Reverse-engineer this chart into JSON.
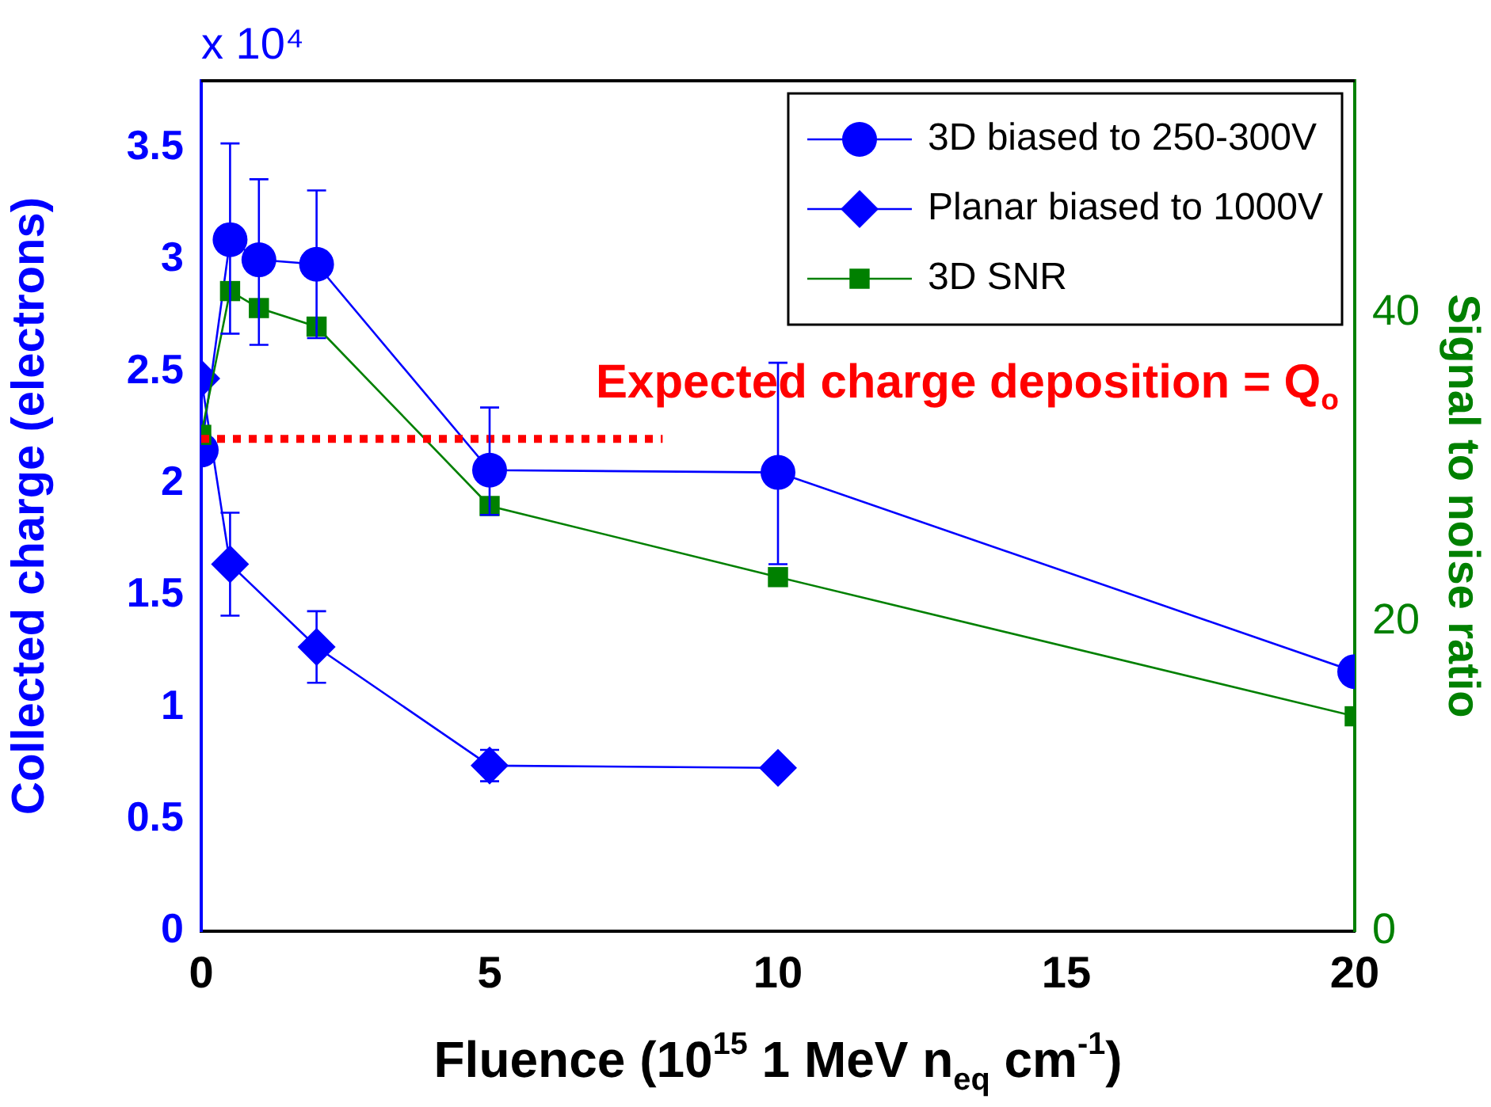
{
  "chart_data": {
    "type": "line",
    "xlabel": "Fluence (10$^{15}$ 1 MeV n$_{eq}$ cm$^{-1}$)",
    "ylabel": "Collected charge (electrons)",
    "y2label": "Signal to noise ratio",
    "xlim": [
      0,
      20
    ],
    "xticks": [
      0,
      5,
      10,
      15,
      20
    ],
    "ylim": [
      0,
      3.8
    ],
    "yticks": [
      0,
      0.5,
      1,
      1.5,
      2,
      2.5,
      3,
      3.5
    ],
    "y2lim": [
      0,
      55
    ],
    "y2ticks": [
      0,
      20,
      40
    ],
    "legend": "top right",
    "grid": false,
    "annotations": [
      "x 10⁴",
      "Expected charge deposition = Q$_{o}$"
    ],
    "series": [
      {
        "name": "3D biased to 250-300V",
        "color": "#0000ff",
        "marker": "circle",
        "x": [
          0,
          0.5,
          1,
          2,
          5,
          10,
          20
        ],
        "values": [
          2.15,
          3.09,
          3.0,
          2.98,
          2.06,
          2.05,
          1.16
        ],
        "errors": [
          null,
          [
            2.67,
            3.52
          ],
          [
            2.62,
            3.36
          ],
          [
            2.65,
            3.31
          ],
          [
            1.86,
            2.34
          ],
          [
            1.64,
            2.54
          ],
          null
        ]
      },
      {
        "name": "Planar biased to 1000V",
        "color": "#0000ff",
        "marker": "diamond",
        "x": [
          0,
          0.5,
          2,
          5,
          10
        ],
        "values": [
          2.47,
          1.64,
          1.27,
          0.74,
          0.73
        ],
        "errors": [
          null,
          [
            1.41,
            1.87
          ],
          [
            1.11,
            1.43
          ],
          [
            0.67,
            0.81
          ],
          null
        ]
      },
      {
        "name": "3D SNR",
        "axis": "y2",
        "color": "#008000",
        "marker": "square",
        "x": [
          0,
          0.5,
          1,
          2,
          5,
          10,
          20
        ],
        "values": [
          32.1,
          41.4,
          40.3,
          39.1,
          27.5,
          22.9,
          13.9
        ]
      },
      {
        "color": "#ff0000",
        "line_style": "dotted",
        "marker": "none",
        "x": [
          0,
          8
        ],
        "values": [
          2.2,
          2.2
        ]
      }
    ]
  }
}
